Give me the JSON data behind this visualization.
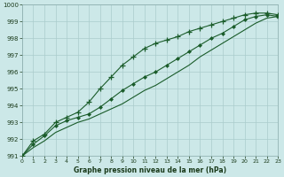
{
  "background_color": "#cce8e8",
  "grid_color": "#aacccc",
  "line_color": "#1a5c2a",
  "xlabel": "Graphe pression niveau de la mer (hPa)",
  "ylim": [
    991,
    1000
  ],
  "xlim": [
    0,
    23
  ],
  "yticks": [
    991,
    992,
    993,
    994,
    995,
    996,
    997,
    998,
    999,
    1000
  ],
  "xticks": [
    0,
    1,
    2,
    3,
    4,
    5,
    6,
    7,
    8,
    9,
    10,
    11,
    12,
    13,
    14,
    15,
    16,
    17,
    18,
    19,
    20,
    21,
    22,
    23
  ],
  "series1_x": [
    0,
    1,
    2,
    3,
    4,
    5,
    6,
    7,
    8,
    9,
    10,
    11,
    12,
    13,
    14,
    15,
    16,
    17,
    18,
    19,
    20,
    21,
    22,
    23
  ],
  "series1_y": [
    991.0,
    991.9,
    992.3,
    993.0,
    993.3,
    993.6,
    994.2,
    995.0,
    995.7,
    996.4,
    996.9,
    997.4,
    997.7,
    997.9,
    998.1,
    998.4,
    998.6,
    998.8,
    999.0,
    999.2,
    999.4,
    999.5,
    999.5,
    999.4
  ],
  "series2_x": [
    0,
    1,
    2,
    3,
    4,
    5,
    6,
    7,
    8,
    9,
    10,
    11,
    12,
    13,
    14,
    15,
    16,
    17,
    18,
    19,
    20,
    21,
    22,
    23
  ],
  "series2_y": [
    991.0,
    991.7,
    992.2,
    992.8,
    993.1,
    993.3,
    993.5,
    993.9,
    994.4,
    994.9,
    995.3,
    995.7,
    996.0,
    996.4,
    996.8,
    997.2,
    997.6,
    998.0,
    998.3,
    998.7,
    999.1,
    999.3,
    999.4,
    999.3
  ],
  "series3_x": [
    0,
    1,
    2,
    3,
    4,
    5,
    6,
    7,
    8,
    9,
    10,
    11,
    12,
    13,
    14,
    15,
    16,
    17,
    18,
    19,
    20,
    21,
    22,
    23
  ],
  "series3_y": [
    991.0,
    991.5,
    991.9,
    992.4,
    992.7,
    993.0,
    993.2,
    993.5,
    993.8,
    994.1,
    994.5,
    994.9,
    995.2,
    995.6,
    996.0,
    996.4,
    996.9,
    997.3,
    997.7,
    998.1,
    998.5,
    998.9,
    999.2,
    999.3
  ]
}
